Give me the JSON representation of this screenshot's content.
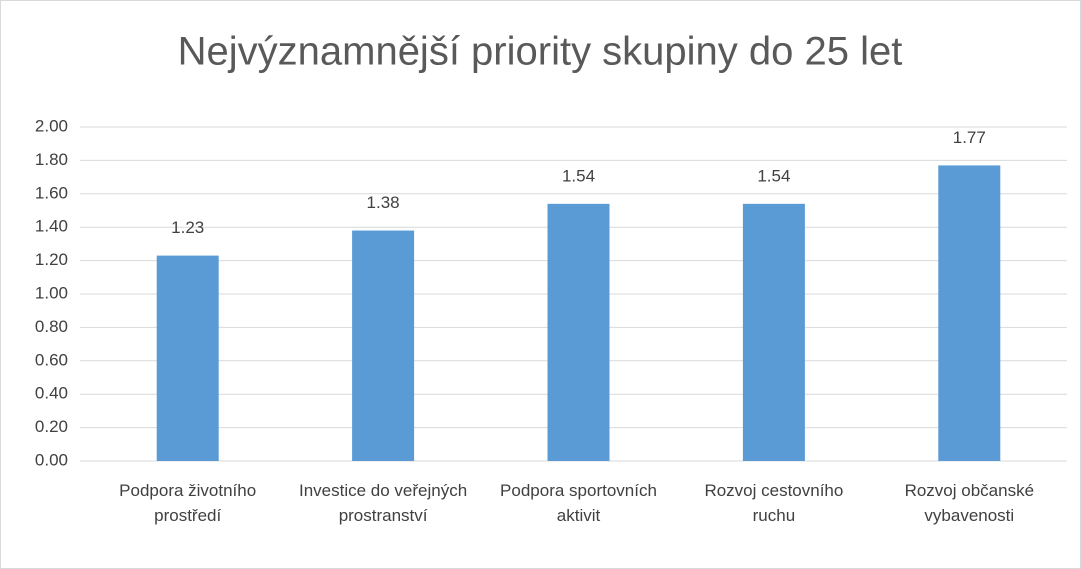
{
  "chart_data": {
    "type": "bar",
    "title": "Nejvýznamnější priority skupiny do 25 let",
    "categories": [
      "Podpora životního prostředí",
      "Investice do veřejných prostranství",
      "Podpora sportovních aktivit",
      "Rozvoj cestovního ruchu",
      "Rozvoj občanské vybavenosti"
    ],
    "values": [
      1.23,
      1.38,
      1.54,
      1.54,
      1.77
    ],
    "color": "#5b9bd5",
    "ylim": [
      0,
      2
    ],
    "yticks": [
      {
        "value": 0,
        "label": "0.00"
      },
      {
        "value": 0.2,
        "label": "0.20"
      },
      {
        "value": 0.4,
        "label": "0.40"
      },
      {
        "value": 0.6,
        "label": "0.60"
      },
      {
        "value": 0.8,
        "label": "0.80"
      },
      {
        "value": 1,
        "label": "1.00"
      },
      {
        "value": 1.2,
        "label": "1.20"
      },
      {
        "value": 1.4,
        "label": "1.40"
      },
      {
        "value": 1.6,
        "label": "1.60"
      },
      {
        "value": 1.8,
        "label": "1.80"
      },
      {
        "value": 2,
        "label": "2.00"
      }
    ],
    "grid": true
  }
}
